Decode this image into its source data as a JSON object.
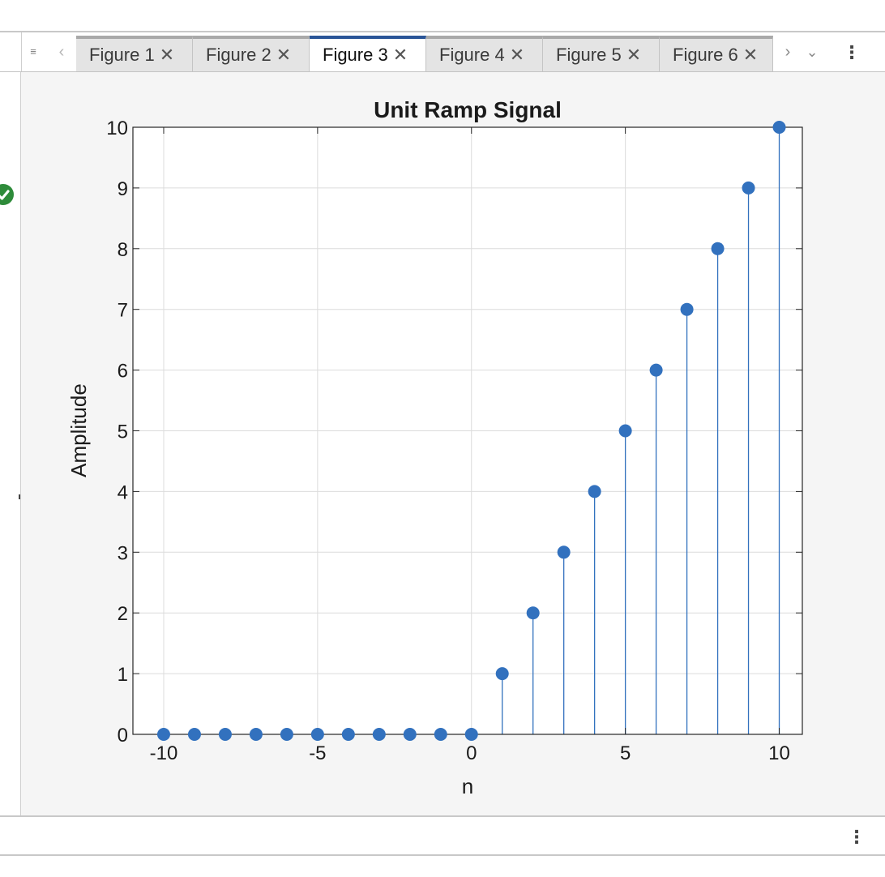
{
  "tabs": [
    {
      "label": "Figure 1",
      "active": false
    },
    {
      "label": "Figure 2",
      "active": false
    },
    {
      "label": "Figure 3",
      "active": true
    },
    {
      "label": "Figure 4",
      "active": false
    },
    {
      "label": "Figure 5",
      "active": false
    },
    {
      "label": "Figure 6",
      "active": false
    }
  ],
  "icons": {
    "tab_menu": "list-icon",
    "tab_prev": "chevron-left-icon",
    "tab_next": "chevron-right-icon",
    "tab_dropdown": "chevron-down-icon",
    "more": "vertical-ellipsis-icon",
    "close": "close-icon",
    "status": "check-circle-icon"
  },
  "colors": {
    "series": "#3271be",
    "active_tab_accent": "#2a5597",
    "status_ok": "#2e8b3a"
  },
  "chart_data": {
    "type": "stem",
    "title": "Unit Ramp Signal",
    "xlabel": "n",
    "ylabel": "Amplitude",
    "xlim": [
      -11,
      10.75
    ],
    "ylim": [
      0,
      10
    ],
    "xticks": [
      -10,
      -5,
      0,
      5,
      10
    ],
    "yticks": [
      0,
      1,
      2,
      3,
      4,
      5,
      6,
      7,
      8,
      9,
      10
    ],
    "grid": true,
    "x": [
      -10,
      -9,
      -8,
      -7,
      -6,
      -5,
      -4,
      -3,
      -2,
      -1,
      0,
      1,
      2,
      3,
      4,
      5,
      6,
      7,
      8,
      9,
      10
    ],
    "y": [
      0,
      0,
      0,
      0,
      0,
      0,
      0,
      0,
      0,
      0,
      0,
      1,
      2,
      3,
      4,
      5,
      6,
      7,
      8,
      9,
      10
    ]
  }
}
